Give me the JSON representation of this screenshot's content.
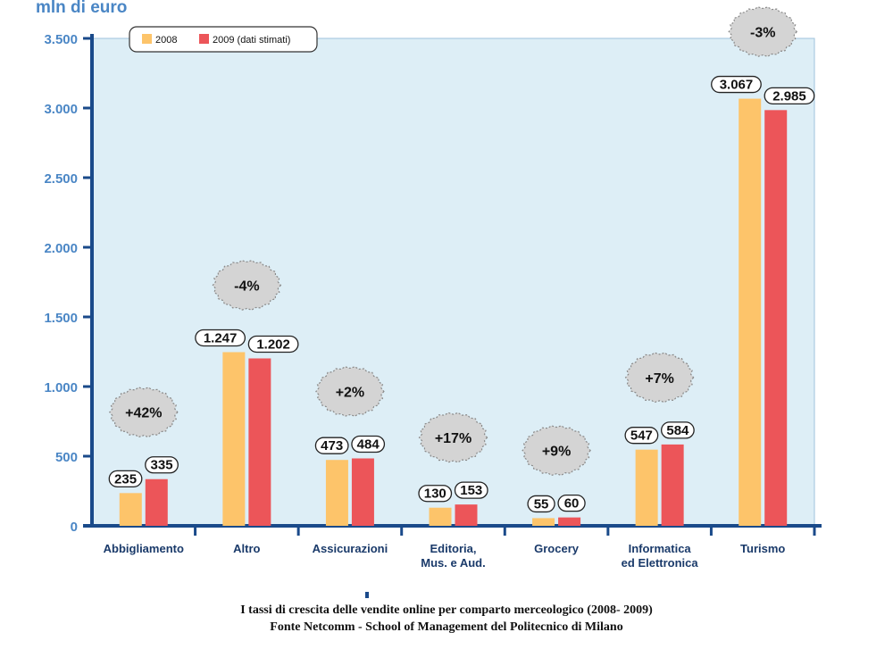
{
  "chart_data": {
    "type": "bar",
    "unit_label": "mln di euro",
    "categories": [
      "Abbigliamento",
      "Altro",
      "Assicurazioni",
      "Editoria,\nMus. e Aud.",
      "Grocery",
      "Informatica\ned Elettronica",
      "Turismo"
    ],
    "series": [
      {
        "name": "2008",
        "color": "#fdc46a",
        "values": [
          235,
          1247,
          473,
          130,
          55,
          547,
          3067
        ],
        "labels": [
          "235",
          "1.247",
          "473",
          "130",
          "55",
          "547",
          "3.067"
        ]
      },
      {
        "name": "2009 (dati stimati)",
        "color": "#ec5559",
        "values": [
          335,
          1202,
          484,
          153,
          60,
          584,
          2985
        ],
        "labels": [
          "335",
          "1.202",
          "484",
          "153",
          "60",
          "584",
          "2.985"
        ]
      }
    ],
    "growth": [
      "+42%",
      "-4%",
      "+2%",
      "+17%",
      "+9%",
      "+7%",
      "-3%"
    ],
    "yticks": [
      0,
      500,
      1000,
      1500,
      2000,
      2500,
      3000,
      3500
    ],
    "ytick_labels": [
      "0",
      "500",
      "1.000",
      "1.500",
      "2.000",
      "2.500",
      "3.000",
      "3.500"
    ],
    "ylim": [
      0,
      3500
    ],
    "legend": "top-left",
    "grid": false
  },
  "caption": {
    "line1": "I tassi di crescita delle vendite online per comparto merceologico (2008- 2009)",
    "line2": "Fonte Netcomm - School of Management del Politecnico di Milano"
  },
  "colors": {
    "axis": "#1a4a8a",
    "plot_bg": "#ddeef6",
    "tick_text": "#4a86c5",
    "bubble": "#d4d4d4"
  }
}
